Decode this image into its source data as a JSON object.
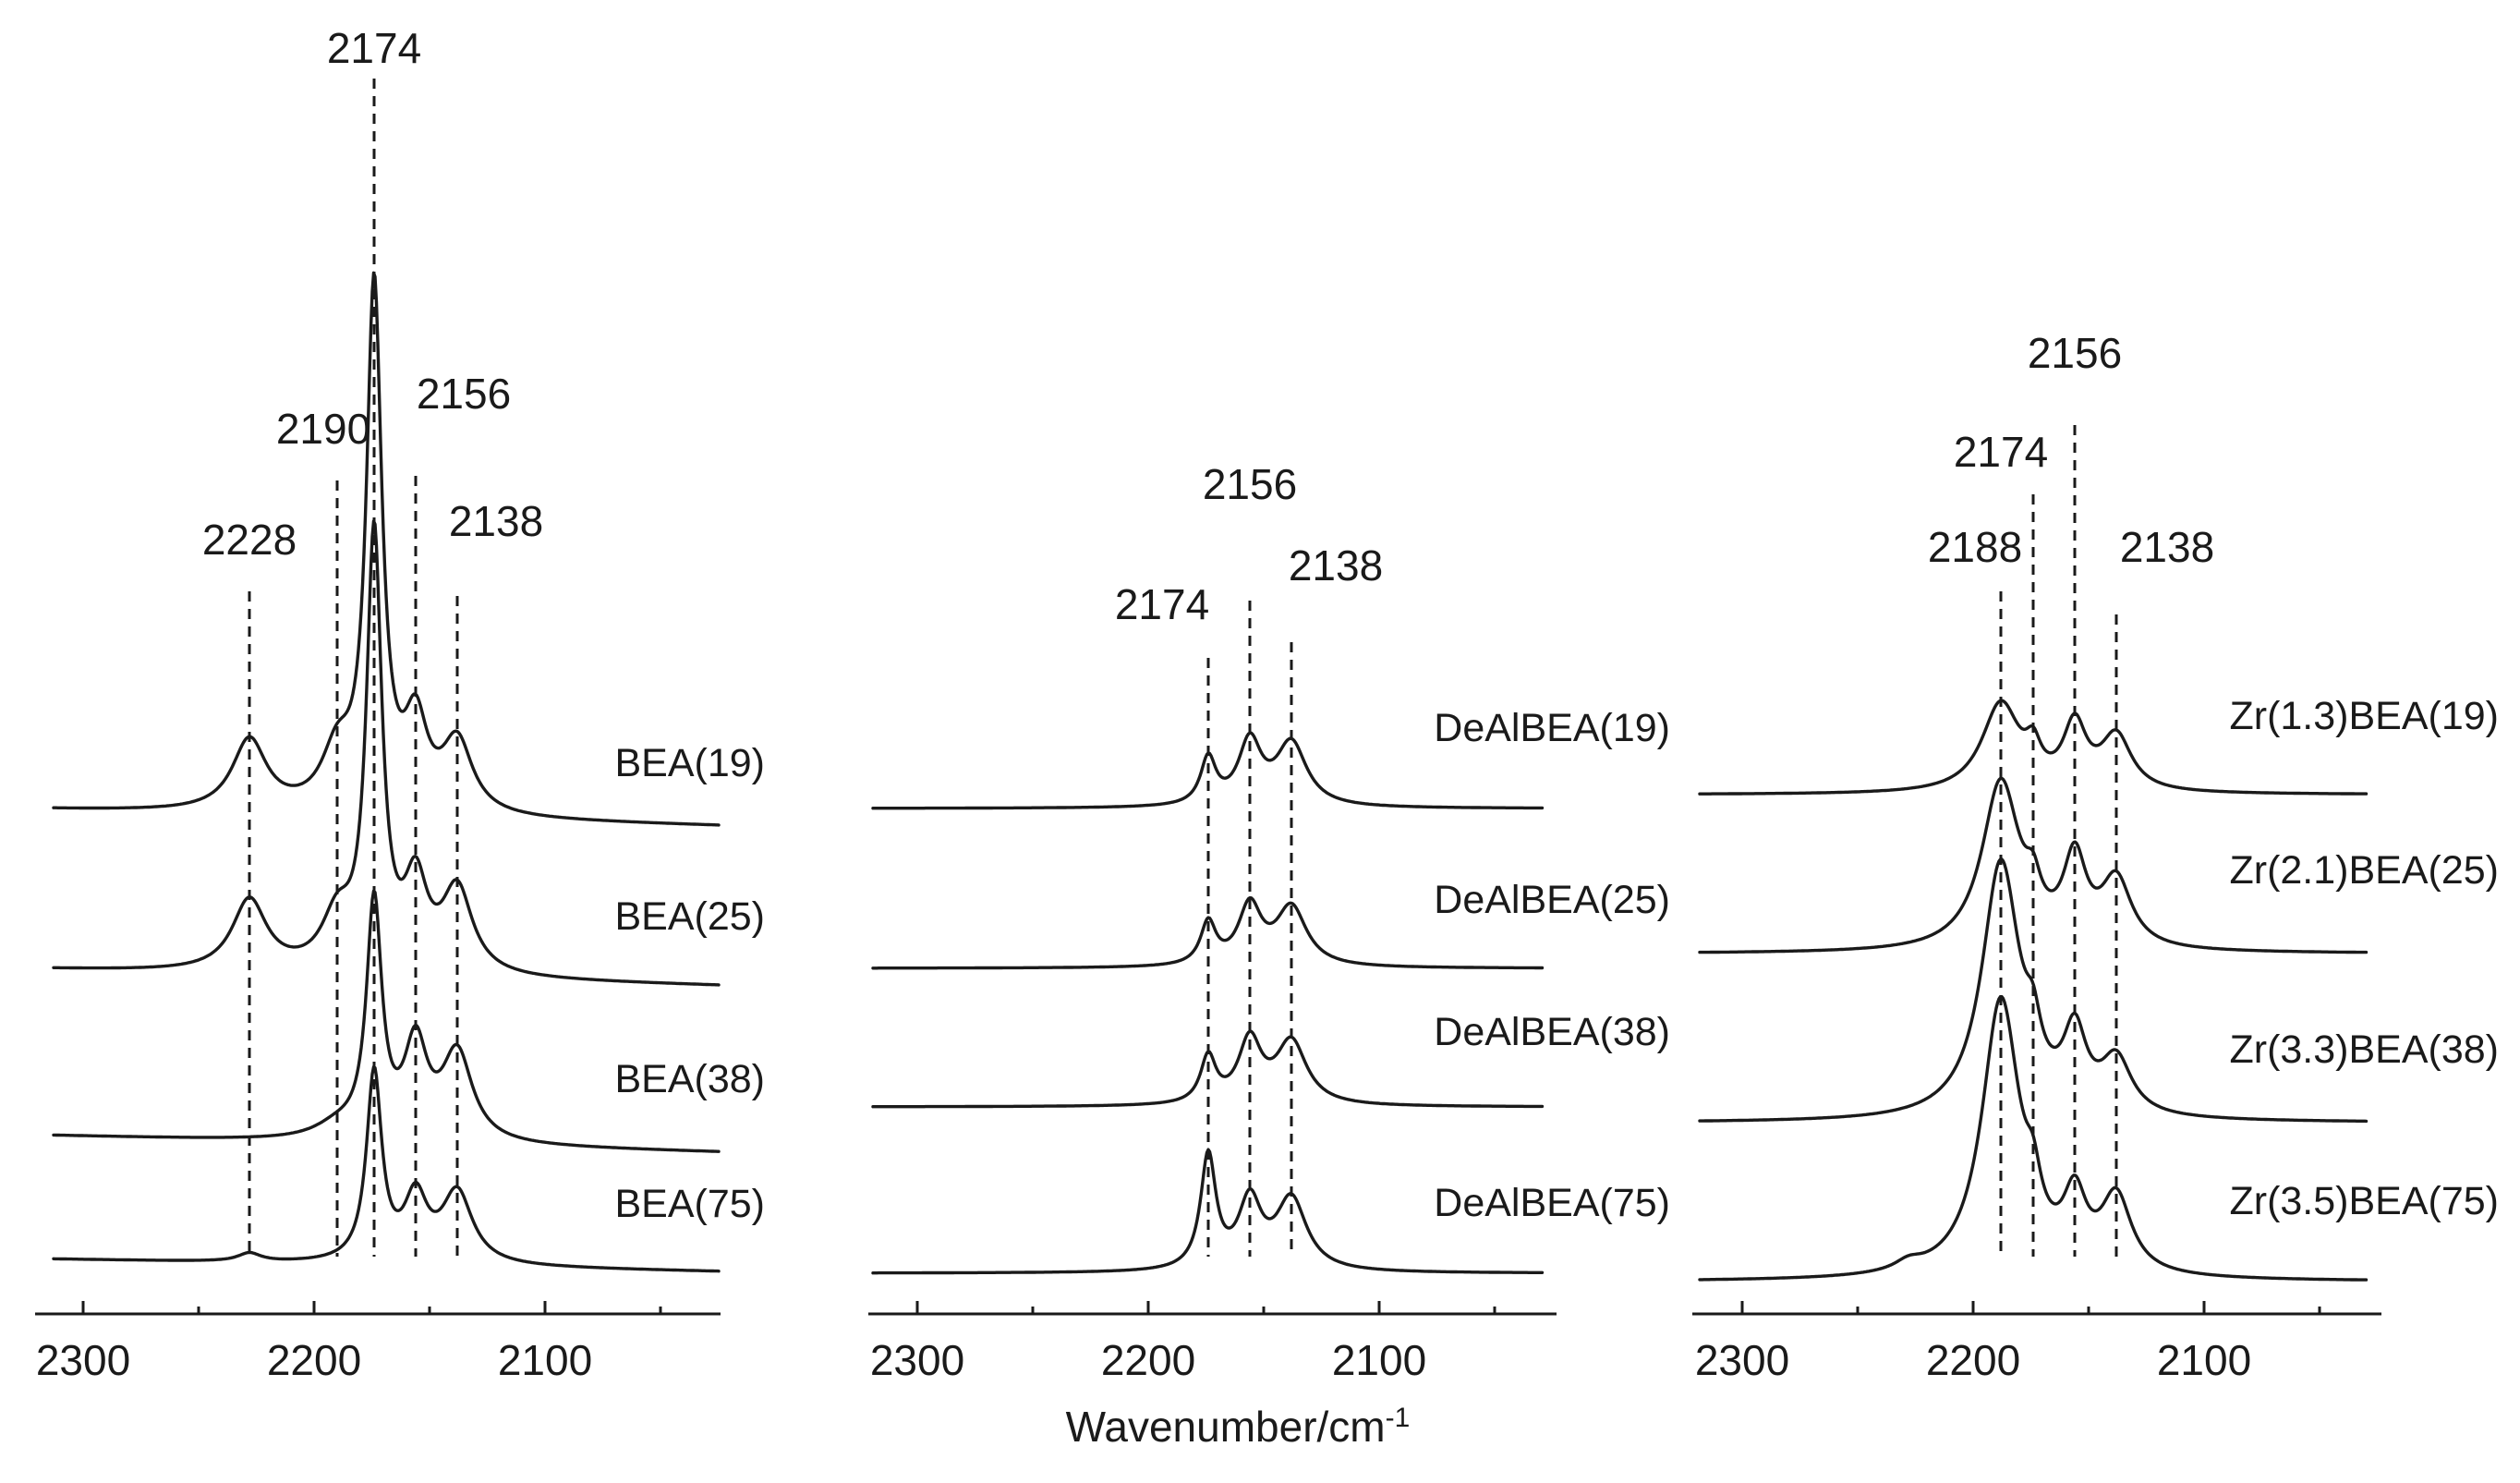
{
  "chart_data": [
    {
      "type": "line",
      "panel": "left",
      "x_unit": "cm-1",
      "xlim": [
        2330,
        2040
      ],
      "x_ticks": [
        2300,
        2200,
        2100
      ],
      "xlabel": "",
      "ylabel": "",
      "grid": false,
      "peak_positions": [
        2228,
        2190,
        2174,
        2156,
        2138
      ],
      "series": [
        {
          "name": "BEA(19)",
          "baseline_start": 0.0,
          "baseline_end": -0.04,
          "peaks": [
            {
              "x": 2228,
              "h": 0.17,
              "w": 9
            },
            {
              "x": 2190,
              "h": 0.13,
              "w": 8
            },
            {
              "x": 2174,
              "h": 1.24,
              "w": 4
            },
            {
              "x": 2156,
              "h": 0.2,
              "w": 6
            },
            {
              "x": 2138,
              "h": 0.17,
              "w": 8
            }
          ]
        },
        {
          "name": "BEA(25)",
          "baseline_start": 0.0,
          "baseline_end": -0.04,
          "peaks": [
            {
              "x": 2228,
              "h": 0.17,
              "w": 9
            },
            {
              "x": 2190,
              "h": 0.12,
              "w": 8
            },
            {
              "x": 2174,
              "h": 1.03,
              "w": 4
            },
            {
              "x": 2156,
              "h": 0.2,
              "w": 6
            },
            {
              "x": 2138,
              "h": 0.2,
              "w": 8
            }
          ]
        },
        {
          "name": "BEA(38)",
          "baseline_start": 0.0,
          "baseline_end": -0.04,
          "peaks": [
            {
              "x": 2190,
              "h": 0.03,
              "w": 12
            },
            {
              "x": 2174,
              "h": 0.56,
              "w": 4
            },
            {
              "x": 2156,
              "h": 0.22,
              "w": 6
            },
            {
              "x": 2138,
              "h": 0.21,
              "w": 8
            }
          ]
        },
        {
          "name": "BEA(75)",
          "baseline_start": 0.0,
          "baseline_end": -0.03,
          "peaks": [
            {
              "x": 2228,
              "h": 0.02,
              "w": 6
            },
            {
              "x": 2174,
              "h": 0.45,
              "w": 4
            },
            {
              "x": 2156,
              "h": 0.15,
              "w": 6
            },
            {
              "x": 2138,
              "h": 0.17,
              "w": 8
            }
          ]
        }
      ]
    },
    {
      "type": "line",
      "panel": "middle",
      "x_unit": "cm-1",
      "xlim": [
        2330,
        2040
      ],
      "x_ticks": [
        2300,
        2200,
        2100
      ],
      "xlabel": "Wavenumber/cm-1",
      "ylabel": "",
      "grid": false,
      "peak_positions": [
        2174,
        2156,
        2138
      ],
      "series": [
        {
          "name": "DeAlBEA(19)",
          "baseline_start": 0.0,
          "baseline_end": 0.0,
          "peaks": [
            {
              "x": 2174,
              "h": 0.11,
              "w": 4
            },
            {
              "x": 2156,
              "h": 0.15,
              "w": 6
            },
            {
              "x": 2138,
              "h": 0.15,
              "w": 8
            }
          ]
        },
        {
          "name": "DeAlBEA(25)",
          "baseline_start": 0.0,
          "baseline_end": 0.0,
          "peaks": [
            {
              "x": 2174,
              "h": 0.1,
              "w": 4
            },
            {
              "x": 2156,
              "h": 0.14,
              "w": 6
            },
            {
              "x": 2138,
              "h": 0.14,
              "w": 8
            }
          ]
        },
        {
          "name": "DeAlBEA(38)",
          "baseline_start": 0.0,
          "baseline_end": 0.0,
          "peaks": [
            {
              "x": 2174,
              "h": 0.11,
              "w": 4
            },
            {
              "x": 2156,
              "h": 0.15,
              "w": 6
            },
            {
              "x": 2138,
              "h": 0.15,
              "w": 8
            }
          ]
        },
        {
          "name": "DeAlBEA(75)",
          "baseline_start": 0.0,
          "baseline_end": 0.0,
          "peaks": [
            {
              "x": 2174,
              "h": 0.27,
              "w": 4
            },
            {
              "x": 2156,
              "h": 0.16,
              "w": 6
            },
            {
              "x": 2138,
              "h": 0.17,
              "w": 8
            }
          ]
        }
      ]
    },
    {
      "type": "line",
      "panel": "right",
      "x_unit": "cm-1",
      "xlim": [
        2330,
        2040
      ],
      "x_ticks": [
        2300,
        2200,
        2100
      ],
      "xlabel": "",
      "ylabel": "",
      "grid": false,
      "peak_positions": [
        2188,
        2174,
        2156,
        2138
      ],
      "series": [
        {
          "name": "Zr(1.3)BEA(19)",
          "baseline_start": 0.0,
          "baseline_end": 0.0,
          "peaks": [
            {
              "x": 2188,
              "h": 0.21,
              "w": 10
            },
            {
              "x": 2174,
              "h": 0.07,
              "w": 4
            },
            {
              "x": 2156,
              "h": 0.15,
              "w": 6
            },
            {
              "x": 2138,
              "h": 0.13,
              "w": 8
            }
          ]
        },
        {
          "name": "Zr(2.1)BEA(25)",
          "baseline_start": 0.0,
          "baseline_end": 0.0,
          "peaks": [
            {
              "x": 2188,
              "h": 0.4,
              "w": 10
            },
            {
              "x": 2174,
              "h": 0.08,
              "w": 4
            },
            {
              "x": 2156,
              "h": 0.2,
              "w": 6
            },
            {
              "x": 2138,
              "h": 0.16,
              "w": 8
            }
          ]
        },
        {
          "name": "Zr(3.3)BEA(38)",
          "baseline_start": 0.0,
          "baseline_end": 0.0,
          "peaks": [
            {
              "x": 2188,
              "h": 0.61,
              "w": 10
            },
            {
              "x": 2174,
              "h": 0.1,
              "w": 4
            },
            {
              "x": 2156,
              "h": 0.18,
              "w": 6
            },
            {
              "x": 2138,
              "h": 0.13,
              "w": 8
            }
          ]
        },
        {
          "name": "Zr(3.5)BEA(75)",
          "baseline_start": 0.0,
          "baseline_end": 0.0,
          "peaks": [
            {
              "x": 2228,
              "h": 0.02,
              "w": 7
            },
            {
              "x": 2188,
              "h": 0.66,
              "w": 10
            },
            {
              "x": 2174,
              "h": 0.1,
              "w": 4
            },
            {
              "x": 2156,
              "h": 0.16,
              "w": 6
            },
            {
              "x": 2138,
              "h": 0.18,
              "w": 8
            }
          ]
        }
      ]
    }
  ]
}
